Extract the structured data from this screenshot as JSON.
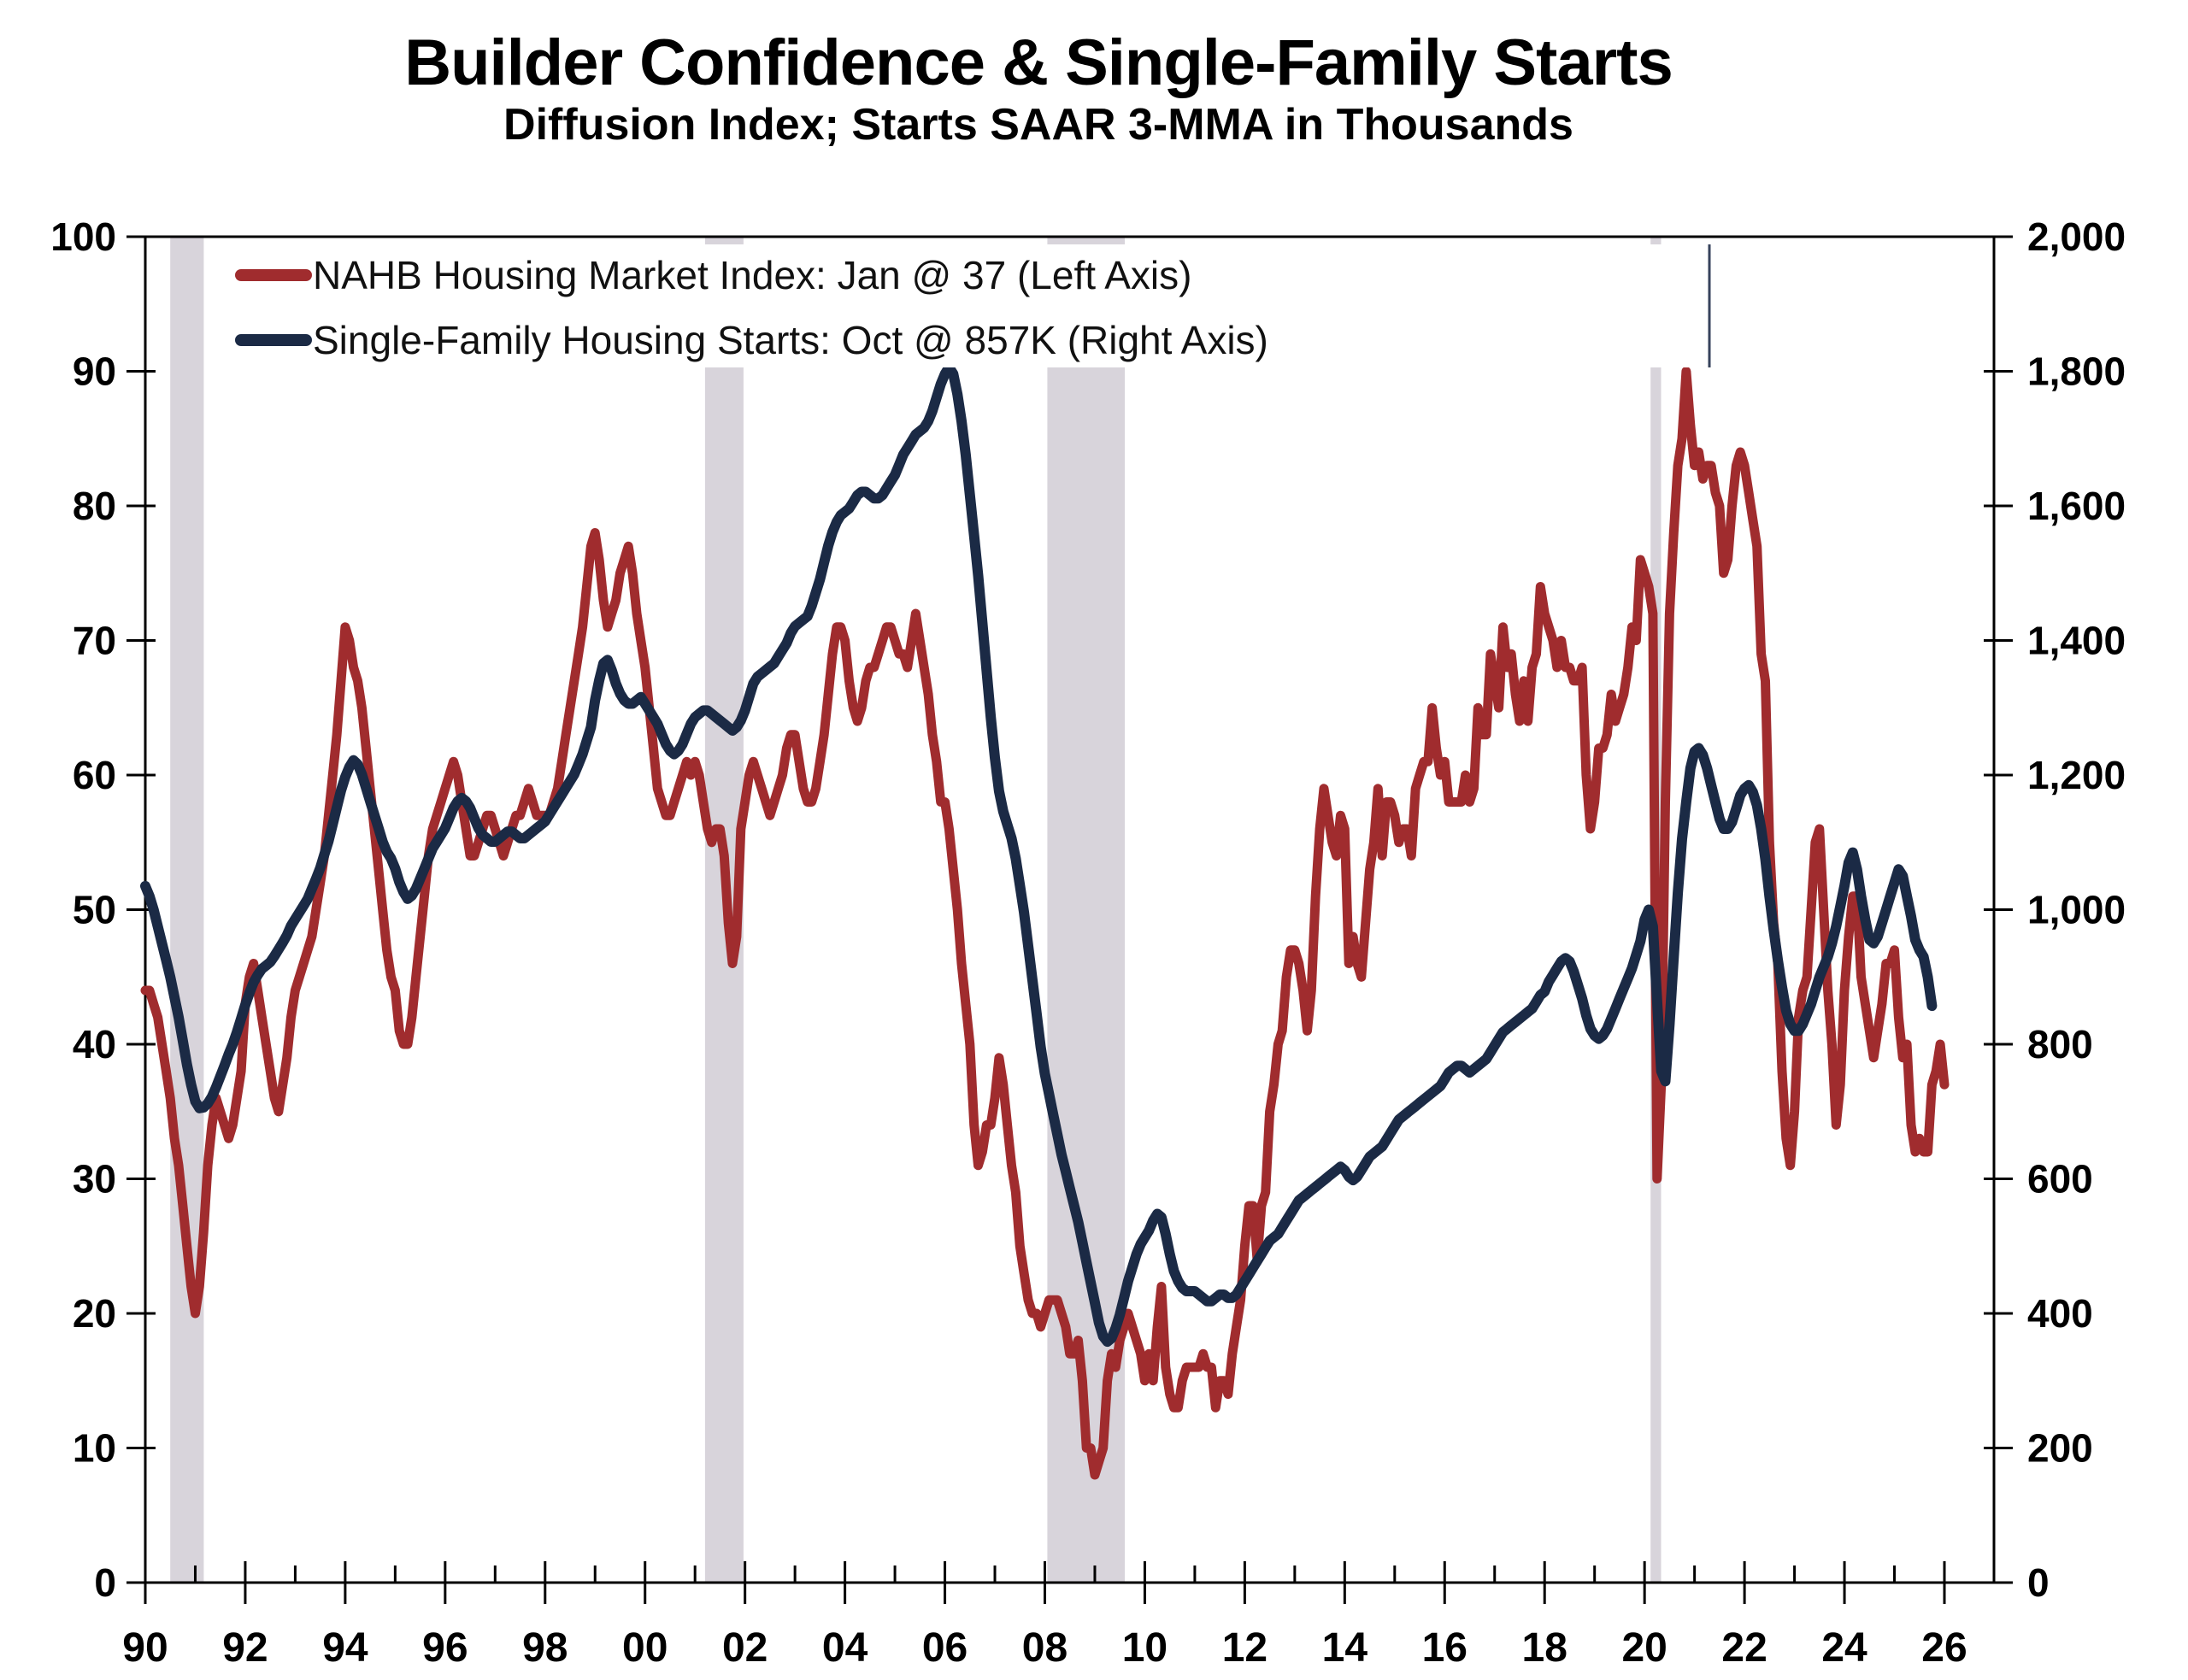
{
  "title": "Builder Confidence & Single-Family Starts",
  "subtitle": "Diffusion Index; Starts SAAR 3-MMA in Thousands",
  "legend": {
    "items": [
      {
        "label": "NAHB Housing Market Index: Jan @ 37 (Left Axis)",
        "color": "#A02C2E"
      },
      {
        "label": "Single-Family Housing Starts: Oct @ 857K (Right Axis)",
        "color": "#1B2A45"
      }
    ]
  },
  "chart_data": {
    "type": "line",
    "title": "Builder Confidence & Single-Family Starts",
    "subtitle": "Diffusion Index; Starts SAAR 3-MMA in Thousands",
    "grid": false,
    "legend_position": "top-left",
    "x_axis": {
      "start_year": 1990,
      "end_year": 2026,
      "major_tick_step_years": 2,
      "minor_tick_step_years": 1,
      "labels": [
        "90",
        "92",
        "94",
        "96",
        "98",
        "00",
        "02",
        "04",
        "06",
        "08",
        "10",
        "12",
        "14",
        "16",
        "18",
        "20",
        "22",
        "24",
        "26"
      ]
    },
    "y_left": {
      "min": 0,
      "max": 100,
      "step": 10,
      "labels": [
        "0",
        "10",
        "20",
        "30",
        "40",
        "50",
        "60",
        "70",
        "80",
        "90",
        "100"
      ]
    },
    "y_right": {
      "min": 0,
      "max": 2000,
      "step": 200,
      "labels": [
        "0",
        "200",
        "400",
        "600",
        "800",
        "1,000",
        "1,200",
        "1,400",
        "1,600",
        "1,800",
        "2,000"
      ]
    },
    "recession_bands": [
      [
        1990.5,
        1991.17
      ],
      [
        2001.2,
        2001.97
      ],
      [
        2008.05,
        2009.6
      ],
      [
        2020.12,
        2020.33
      ]
    ],
    "recession_band_color": "#D8D4DB",
    "series": [
      {
        "name": "NAHB Housing Market Index",
        "latest_label": "Jan @ 37",
        "axis": "left",
        "color": "#A02C2E",
        "width": 11,
        "start_year": 1990,
        "interval_months": 1,
        "values": [
          44,
          44,
          43,
          42,
          40,
          38,
          36,
          33,
          31,
          28,
          25,
          22,
          20,
          22,
          26,
          31,
          34,
          36,
          35,
          34,
          33,
          34,
          36,
          38,
          43,
          45,
          46,
          44,
          42,
          40,
          38,
          36,
          35,
          37,
          39,
          42,
          44,
          45,
          46,
          47,
          48,
          50,
          52,
          54,
          57,
          60,
          63,
          67,
          71,
          70,
          68,
          67,
          65,
          62,
          59,
          56,
          53,
          50,
          47,
          45,
          44,
          41,
          40,
          40,
          42,
          45,
          48,
          51,
          54,
          56,
          57,
          58,
          59,
          60,
          61,
          60,
          58,
          56,
          54,
          54,
          55,
          56,
          57,
          57,
          56,
          55,
          54,
          55,
          56,
          57,
          57,
          58,
          59,
          58,
          57,
          57,
          57,
          57,
          58,
          59,
          61,
          63,
          65,
          67,
          69,
          71,
          74,
          77,
          78,
          76,
          73,
          71,
          72,
          73,
          75,
          76,
          77,
          75,
          72,
          70,
          68,
          65,
          62,
          59,
          58,
          57,
          57,
          58,
          59,
          60,
          61,
          60,
          61,
          60,
          58,
          56,
          55,
          56,
          56,
          54,
          49,
          46,
          48,
          56,
          58,
          60,
          61,
          60,
          59,
          58,
          57,
          58,
          59,
          60,
          62,
          63,
          63,
          61,
          59,
          58,
          58,
          59,
          61,
          63,
          66,
          69,
          71,
          71,
          70,
          67,
          65,
          64,
          65,
          67,
          68,
          68,
          69,
          70,
          71,
          71,
          70,
          69,
          69,
          68,
          70,
          72,
          70,
          68,
          66,
          63,
          61,
          58,
          58,
          56,
          53,
          50,
          46,
          43,
          40,
          34,
          31,
          32,
          34,
          34,
          36,
          39,
          37,
          34,
          31,
          29,
          25,
          23,
          21,
          20,
          20,
          19,
          20,
          21,
          21,
          21,
          20,
          19,
          17,
          17,
          18,
          15,
          10,
          10,
          8,
          9,
          10,
          15,
          17,
          16,
          18,
          19,
          20,
          19,
          18,
          17,
          15,
          17,
          15,
          19,
          22,
          16,
          14,
          13,
          13,
          15,
          16,
          16,
          16,
          16,
          17,
          16,
          16,
          13,
          15,
          15,
          14,
          17,
          19,
          21,
          25,
          28,
          28,
          24,
          28,
          29,
          35,
          37,
          40,
          41,
          45,
          47,
          47,
          46,
          44,
          41,
          44,
          51,
          56,
          59,
          57,
          55,
          54,
          57,
          56,
          46,
          48,
          46,
          45,
          49,
          53,
          55,
          59,
          54,
          58,
          58,
          57,
          55,
          56,
          56,
          54,
          59,
          60,
          61,
          61,
          65,
          62,
          60,
          61,
          58,
          58,
          58,
          58,
          60,
          58,
          59,
          65,
          63,
          63,
          69,
          67,
          65,
          71,
          68,
          69,
          66,
          64,
          67,
          64,
          68,
          69,
          74,
          72,
          71,
          70,
          68,
          70,
          68,
          68,
          67,
          67,
          68,
          60,
          56,
          58,
          62,
          62,
          63,
          66,
          64,
          65,
          66,
          68,
          71,
          70,
          76,
          75,
          74,
          72,
          30,
          37,
          58,
          72,
          78,
          83,
          85,
          90,
          86,
          83,
          84,
          82,
          83,
          83,
          81,
          80,
          75,
          76,
          80,
          83,
          84,
          83,
          81,
          79,
          77,
          69,
          67,
          55,
          49,
          46,
          38,
          33,
          31,
          35,
          42,
          44,
          45,
          50,
          55,
          56,
          50,
          44,
          40,
          34,
          37,
          44,
          48,
          51,
          51,
          45,
          43,
          41,
          39,
          41,
          43,
          46,
          46,
          47,
          42,
          39,
          40,
          34,
          32,
          33,
          32,
          32,
          37,
          38,
          40,
          37
        ]
      },
      {
        "name": "Single-Family Housing Starts",
        "latest_label": "Oct @ 857K",
        "axis": "right",
        "color": "#1B2A45",
        "width": 12,
        "start_year": 1990,
        "interval_months": 1,
        "values": [
          1035,
          1020,
          1000,
          975,
          950,
          925,
          900,
          870,
          840,
          805,
          770,
          740,
          715,
          705,
          706,
          712,
          722,
          736,
          752,
          768,
          785,
          800,
          818,
          838,
          858,
          876,
          892,
          903,
          912,
          917,
          922,
          931,
          941,
          951,
          962,
          976,
          986,
          996,
          1006,
          1016,
          1031,
          1046,
          1062,
          1082,
          1102,
          1127,
          1152,
          1177,
          1197,
          1212,
          1222,
          1216,
          1201,
          1181,
          1161,
          1141,
          1121,
          1101,
          1086,
          1076,
          1061,
          1041,
          1026,
          1016,
          1021,
          1031,
          1046,
          1061,
          1076,
          1091,
          1101,
          1111,
          1121,
          1136,
          1151,
          1161,
          1166,
          1161,
          1151,
          1136,
          1121,
          1111,
          1106,
          1101,
          1101,
          1106,
          1111,
          1116,
          1116,
          1111,
          1106,
          1106,
          1111,
          1116,
          1121,
          1126,
          1131,
          1141,
          1151,
          1161,
          1171,
          1181,
          1191,
          1201,
          1216,
          1231,
          1251,
          1271,
          1311,
          1341,
          1366,
          1371,
          1356,
          1336,
          1321,
          1311,
          1306,
          1306,
          1311,
          1316,
          1306,
          1296,
          1286,
          1276,
          1261,
          1246,
          1236,
          1231,
          1236,
          1246,
          1261,
          1276,
          1286,
          1291,
          1296,
          1296,
          1291,
          1286,
          1281,
          1276,
          1271,
          1266,
          1271,
          1281,
          1296,
          1316,
          1336,
          1346,
          1351,
          1356,
          1361,
          1366,
          1376,
          1386,
          1396,
          1411,
          1421,
          1426,
          1431,
          1436,
          1451,
          1471,
          1491,
          1516,
          1541,
          1561,
          1576,
          1586,
          1591,
          1596,
          1606,
          1616,
          1621,
          1621,
          1616,
          1611,
          1611,
          1616,
          1626,
          1636,
          1646,
          1661,
          1676,
          1686,
          1696,
          1706,
          1711,
          1716,
          1726,
          1741,
          1761,
          1781,
          1796,
          1806,
          1796,
          1766,
          1726,
          1676,
          1616,
          1556,
          1496,
          1426,
          1356,
          1286,
          1226,
          1176,
          1146,
          1126,
          1106,
          1076,
          1036,
          996,
          946,
          896,
          846,
          796,
          756,
          726,
          696,
          666,
          636,
          611,
          586,
          561,
          536,
          506,
          476,
          446,
          416,
          386,
          366,
          358,
          363,
          378,
          398,
          423,
          448,
          468,
          488,
          503,
          513,
          523,
          538,
          548,
          543,
          518,
          488,
          463,
          448,
          438,
          433,
          433,
          433,
          428,
          423,
          418,
          418,
          423,
          428,
          428,
          423,
          423,
          428,
          438,
          448,
          458,
          468,
          478,
          488,
          498,
          508,
          513,
          518,
          528,
          538,
          548,
          558,
          568,
          573,
          578,
          583,
          588,
          593,
          598,
          603,
          608,
          613,
          618,
          613,
          603,
          598,
          603,
          613,
          623,
          633,
          638,
          643,
          648,
          658,
          668,
          678,
          688,
          693,
          698,
          703,
          708,
          713,
          718,
          723,
          728,
          733,
          738,
          748,
          758,
          763,
          768,
          768,
          763,
          758,
          763,
          768,
          773,
          778,
          788,
          798,
          808,
          818,
          823,
          828,
          833,
          838,
          843,
          848,
          853,
          863,
          873,
          878,
          893,
          903,
          913,
          923,
          928,
          923,
          908,
          888,
          868,
          843,
          823,
          813,
          808,
          813,
          823,
          838,
          853,
          868,
          883,
          898,
          913,
          933,
          953,
          985,
          1000,
          975,
          865,
          760,
          745,
          830,
          930,
          1025,
          1105,
          1160,
          1210,
          1235,
          1240,
          1230,
          1210,
          1185,
          1160,
          1135,
          1120,
          1120,
          1130,
          1150,
          1170,
          1180,
          1185,
          1175,
          1155,
          1120,
          1075,
          1020,
          970,
          925,
          885,
          850,
          830,
          820,
          820,
          830,
          845,
          860,
          880,
          900,
          915,
          930,
          950,
          975,
          1005,
          1035,
          1070,
          1085,
          1060,
          1020,
          985,
          955,
          950,
          960,
          980,
          1000,
          1020,
          1040,
          1060,
          1050,
          1020,
          990,
          955,
          940,
          930,
          900,
          857
        ]
      }
    ]
  }
}
